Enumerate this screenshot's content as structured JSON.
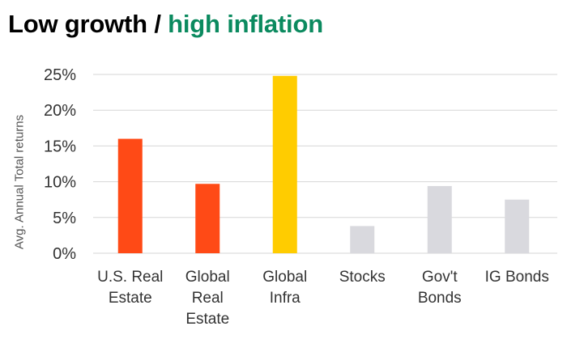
{
  "chart_data": {
    "type": "bar",
    "title_part1": "Low growth / ",
    "title_part2": "high inflation",
    "ylabel": "Avg. Annual Total returns",
    "xlabel": "",
    "ylim": [
      0,
      25
    ],
    "yticks": [
      "0%",
      "5%",
      "10%",
      "15%",
      "20%",
      "25%"
    ],
    "grid": true,
    "categories": [
      [
        "U.S. Real",
        "Estate"
      ],
      [
        "Global",
        "Real",
        "Estate"
      ],
      [
        "Global",
        "Infra"
      ],
      [
        "Stocks"
      ],
      [
        "Gov't",
        "Bonds"
      ],
      [
        "IG Bonds"
      ]
    ],
    "values": [
      16.0,
      9.7,
      24.8,
      3.8,
      9.4,
      7.5
    ],
    "colors": [
      "#ff4a16",
      "#ff4a16",
      "#ffcc00",
      "#d9d9de",
      "#d9d9de",
      "#d9d9de"
    ]
  }
}
